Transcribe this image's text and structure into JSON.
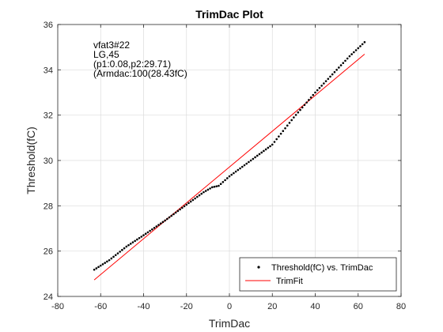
{
  "chart_data": {
    "type": "scatter",
    "title": "TrimDac Plot",
    "xlabel": "TrimDac",
    "ylabel": "Threshold(fC)",
    "xlim": [
      -80,
      80
    ],
    "ylim": [
      24,
      36
    ],
    "xticks": [
      "-80",
      "-60",
      "-40",
      "-20",
      "0",
      "20",
      "40",
      "60",
      "80"
    ],
    "yticks": [
      "24",
      "26",
      "28",
      "30",
      "32",
      "34",
      "36"
    ],
    "grid": true,
    "legend_position": "bottom-right",
    "annotations": [
      "vfat3#22",
      "LG,45",
      "(p1:0.08,p2:29.71)",
      "(Armdac:100(28.43fC)"
    ],
    "series": [
      {
        "name": "Threshold(fC) vs. TrimDac",
        "style": "markers",
        "color": "#000000",
        "x_start": -63,
        "x_end": 63,
        "anchors": [
          [
            -63,
            25.18
          ],
          [
            -56,
            25.6
          ],
          [
            -48,
            26.2
          ],
          [
            -40,
            26.7
          ],
          [
            -30,
            27.35
          ],
          [
            -20,
            28.05
          ],
          [
            -12,
            28.6
          ],
          [
            -8,
            28.82
          ],
          [
            -5,
            28.88
          ],
          [
            0,
            29.3
          ],
          [
            10,
            30.0
          ],
          [
            20,
            30.7
          ],
          [
            30,
            31.9
          ],
          [
            40,
            33.0
          ],
          [
            50,
            34.0
          ],
          [
            56,
            34.6
          ],
          [
            63,
            35.22
          ]
        ]
      },
      {
        "name": "TrimFit",
        "style": "line",
        "color": "#ff0000",
        "x": [
          -63,
          63
        ],
        "y": [
          24.73,
          34.69
        ]
      }
    ]
  }
}
